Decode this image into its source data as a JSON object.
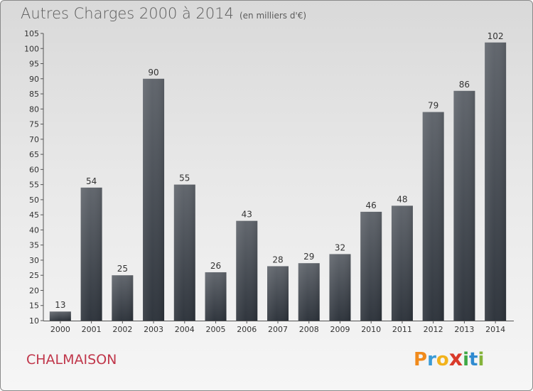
{
  "header": {
    "title": "Autres Charges 2000 à 2014",
    "unit": "(en milliers d'€)"
  },
  "commune": "CHALMAISON",
  "logo": {
    "letters": [
      "P",
      "r",
      "o",
      "x",
      "i",
      "t",
      "i"
    ],
    "colors": [
      "#f08a1c",
      "#3a9bd6",
      "#f2b21b",
      "#d93a2a",
      "#3ea845",
      "#2f8ad0",
      "#84b33a"
    ]
  },
  "colors": {
    "bar_top": "#5f646b",
    "bar_bottom": "#2c323a",
    "commune_text": "#c0364a",
    "axis_text": "#333333"
  },
  "chart_data": {
    "type": "bar",
    "title": "Autres Charges 2000 à 2014",
    "subtitle": "(en milliers d'€)",
    "categories": [
      "2000",
      "2001",
      "2002",
      "2003",
      "2004",
      "2005",
      "2006",
      "2007",
      "2008",
      "2009",
      "2010",
      "2011",
      "2012",
      "2013",
      "2014"
    ],
    "values": [
      13,
      54,
      25,
      90,
      55,
      26,
      43,
      28,
      29,
      32,
      46,
      48,
      79,
      86,
      102
    ],
    "ylim": [
      10,
      105
    ],
    "yticks": [
      10,
      15,
      20,
      25,
      30,
      35,
      40,
      45,
      50,
      55,
      60,
      65,
      70,
      75,
      80,
      85,
      90,
      95,
      100,
      105
    ],
    "grid": false,
    "data_labels": true
  }
}
